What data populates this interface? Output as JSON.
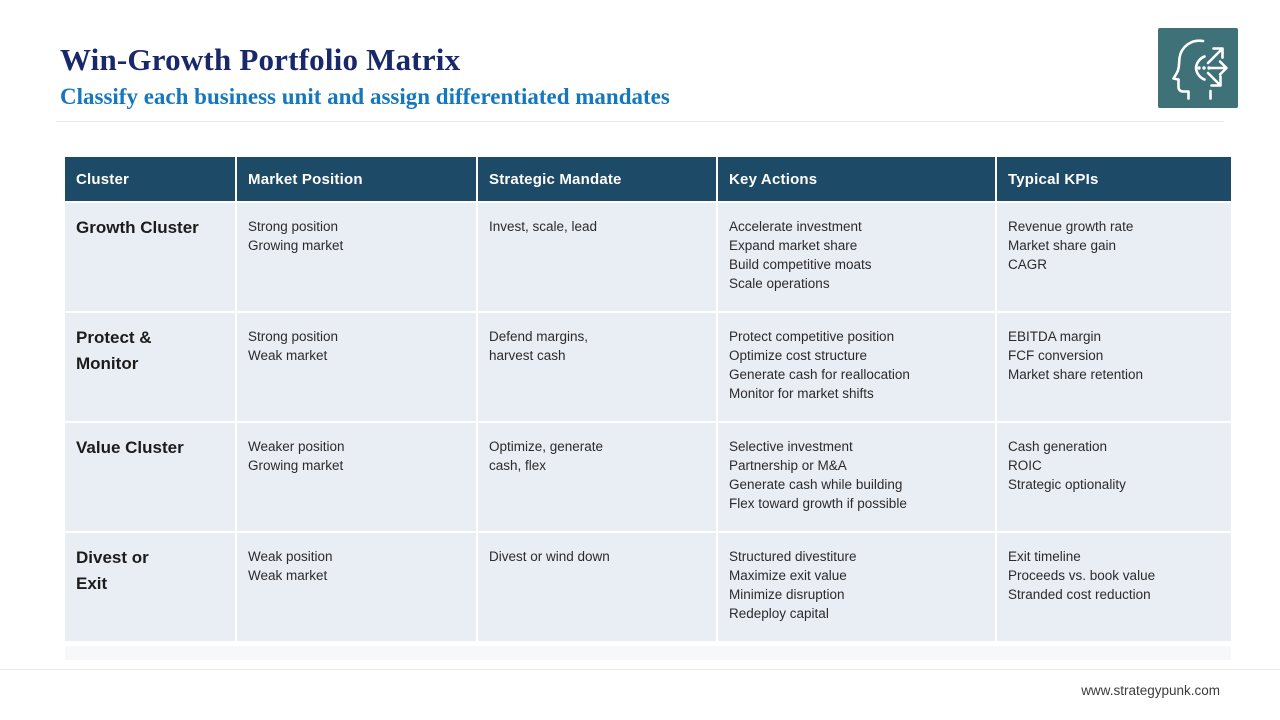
{
  "header": {
    "title": "Win-Growth Portfolio Matrix",
    "subtitle": "Classify each business unit and assign differentiated mandates"
  },
  "logo": {
    "icon": "head-with-arrows-icon",
    "bg_color": "#3f7179"
  },
  "table": {
    "columns": [
      "Cluster",
      "Market Position",
      "Strategic Mandate",
      "Key Actions",
      "Typical KPIs"
    ],
    "rows": [
      {
        "cluster": [
          "Growth Cluster"
        ],
        "market_position": [
          "Strong position",
          "Growing market"
        ],
        "strategic_mandate": [
          "Invest, scale, lead"
        ],
        "key_actions": [
          "Accelerate investment",
          "Expand market share",
          "Build competitive moats",
          "Scale operations"
        ],
        "typical_kpis": [
          "Revenue growth rate",
          "Market share gain",
          "CAGR"
        ]
      },
      {
        "cluster": [
          "Protect &",
          "Monitor"
        ],
        "market_position": [
          "Strong position",
          "Weak market"
        ],
        "strategic_mandate": [
          "Defend margins,",
          "harvest cash"
        ],
        "key_actions": [
          "Protect competitive position",
          "Optimize cost structure",
          "Generate cash for reallocation",
          "Monitor for market shifts"
        ],
        "typical_kpis": [
          "EBITDA margin",
          "FCF conversion",
          "Market share retention"
        ]
      },
      {
        "cluster": [
          "Value Cluster"
        ],
        "market_position": [
          "Weaker position",
          "Growing market"
        ],
        "strategic_mandate": [
          "Optimize, generate",
          "cash, flex"
        ],
        "key_actions": [
          "Selective investment",
          "Partnership or M&A",
          "Generate cash while building",
          "Flex toward growth if possible"
        ],
        "typical_kpis": [
          "Cash generation",
          "ROIC",
          "Strategic optionality"
        ]
      },
      {
        "cluster": [
          "Divest or",
          "Exit"
        ],
        "market_position": [
          "Weak position",
          "Weak market"
        ],
        "strategic_mandate": [
          "Divest or wind down"
        ],
        "key_actions": [
          "Structured divestiture",
          "Maximize exit value",
          "Minimize disruption",
          "Redeploy capital"
        ],
        "typical_kpis": [
          "Exit timeline",
          "Proceeds vs. book value",
          "Stranded cost reduction"
        ]
      }
    ]
  },
  "footer": {
    "url": "www.strategypunk.com"
  },
  "colors": {
    "title": "#19276b",
    "subtitle": "#1577bd",
    "header_bg": "#1d4a66",
    "header_text": "#ffffff",
    "row_bg": "#e9edf4",
    "logo_bg": "#3f7179",
    "strip_bg": "#f6f8fa",
    "rule": "#e9e9e7",
    "footer_text": "#3c3c3c"
  }
}
